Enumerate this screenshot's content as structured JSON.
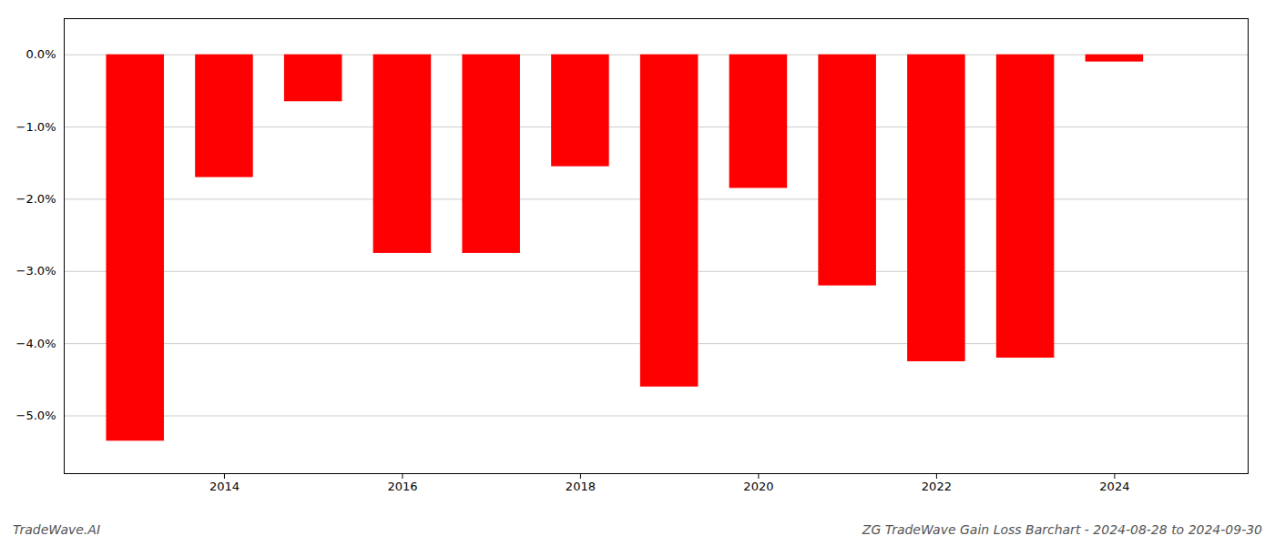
{
  "chart_data": {
    "type": "bar",
    "title": "ZG TradeWave Gain Loss Barchart - 2024-08-28 to 2024-09-30",
    "annotations": [
      "TradeWave.AI"
    ],
    "x": [
      2013,
      2014,
      2015,
      2016,
      2017,
      2018,
      2019,
      2020,
      2021,
      2022,
      2023,
      2024
    ],
    "values": [
      -5.35,
      -1.7,
      -0.65,
      -2.75,
      -2.75,
      -1.55,
      -4.6,
      -1.85,
      -3.2,
      -4.25,
      -4.2,
      -0.1
    ],
    "color": "#ff0000",
    "xlim": [
      2012.2,
      2025.5
    ],
    "xticks": [
      2014,
      2016,
      2018,
      2020,
      2022,
      2024
    ],
    "ylim": [
      -5.8,
      0.5
    ],
    "yticks": [
      {
        "value": 0.0,
        "label": "0.0%"
      },
      {
        "value": -1.0,
        "label": "−1.0%"
      },
      {
        "value": -2.0,
        "label": "−2.0%"
      },
      {
        "value": -3.0,
        "label": "−3.0%"
      },
      {
        "value": -4.0,
        "label": "−4.0%"
      },
      {
        "value": -5.0,
        "label": "−5.0%"
      }
    ],
    "grid": true
  }
}
